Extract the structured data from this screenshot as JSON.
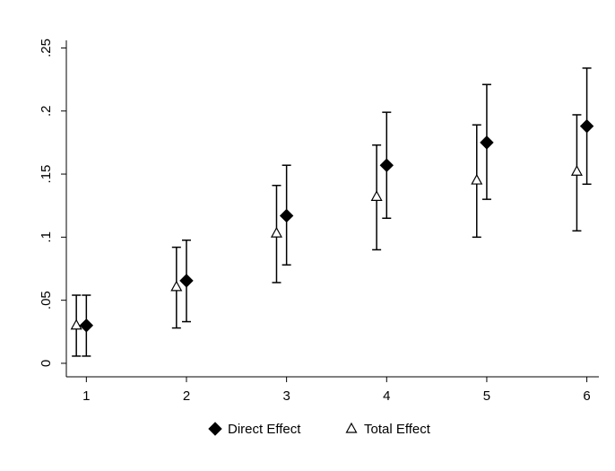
{
  "chart_data": {
    "type": "errorbar",
    "xlim": [
      0.8,
      6.12
    ],
    "xticks": [
      1,
      2,
      3,
      4,
      5,
      6
    ],
    "ylim": [
      -0.0107,
      0.256
    ],
    "yticks": [
      0,
      {
        "value": 0.05,
        "label": ".05"
      },
      {
        "value": 0.1,
        "label": ".1"
      },
      {
        "value": 0.15,
        "label": ".15"
      },
      {
        "value": 0.2,
        "label": ".2"
      },
      {
        "value": 0.25,
        "label": ".25"
      }
    ],
    "legend": "bottom",
    "series": [
      {
        "name": "Direct Effect",
        "color": "#000000",
        "marker": "diamond",
        "filled": true,
        "x": [
          1,
          2,
          3,
          4,
          5,
          6
        ],
        "values": [
          0.03,
          0.0655,
          0.117,
          0.157,
          0.175,
          0.188
        ],
        "lower": [
          0.0057,
          0.033,
          0.078,
          0.115,
          0.13,
          0.142
        ],
        "upper": [
          0.054,
          0.0976,
          0.157,
          0.199,
          0.221,
          0.234
        ]
      },
      {
        "name": "Total Effect",
        "color": "#000000",
        "marker": "triangle",
        "filled": false,
        "x": [
          0.9,
          1.9,
          2.9,
          3.9,
          4.9,
          5.9
        ],
        "values": [
          0.03,
          0.0605,
          0.103,
          0.132,
          0.145,
          0.152
        ],
        "lower": [
          0.0057,
          0.028,
          0.064,
          0.09,
          0.1,
          0.105
        ],
        "upper": [
          0.054,
          0.092,
          0.141,
          0.173,
          0.189,
          0.197
        ]
      }
    ]
  }
}
